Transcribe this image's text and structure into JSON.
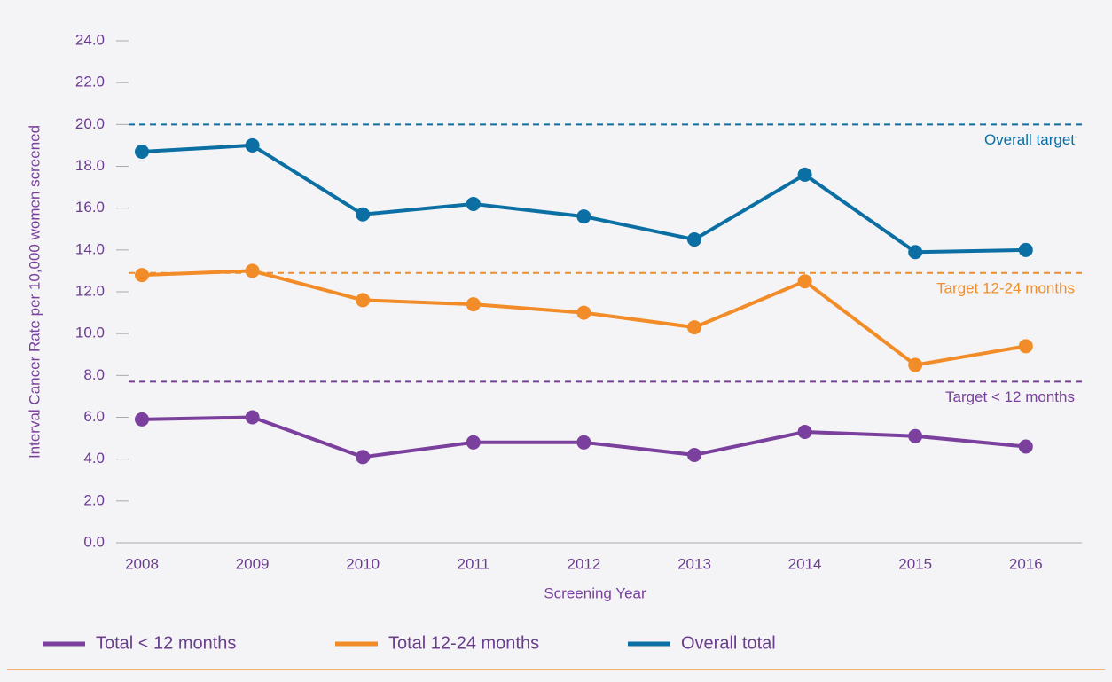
{
  "chart_data": {
    "type": "line",
    "x_label": "Screening Year",
    "y_label": "Interval Cancer Rate per 10,000 women screened",
    "categories": [
      "2008",
      "2009",
      "2010",
      "2011",
      "2012",
      "2013",
      "2014",
      "2015",
      "2016"
    ],
    "series": [
      {
        "name": "Total < 12 months",
        "color": "#7b3f9e",
        "values": [
          5.9,
          6.0,
          4.1,
          4.8,
          4.8,
          4.2,
          5.3,
          5.1,
          4.6
        ]
      },
      {
        "name": "Total 12-24 months",
        "color": "#f28c28",
        "values": [
          12.8,
          13.0,
          11.6,
          11.4,
          11.0,
          10.3,
          12.5,
          8.5,
          9.4
        ]
      },
      {
        "name": "Overall total",
        "color": "#0b6fa4",
        "values": [
          18.7,
          19.0,
          15.7,
          16.2,
          15.6,
          14.5,
          17.6,
          13.9,
          14.0
        ]
      }
    ],
    "reference_lines": [
      {
        "name": "Overall target",
        "value": 20.0,
        "color": "#0b6fa4"
      },
      {
        "name": "Target 12-24 months",
        "value": 12.9,
        "color": "#f28c28"
      },
      {
        "name": "Target < 12 months",
        "value": 7.7,
        "color": "#7b3f9e"
      }
    ],
    "ylim": [
      0,
      24
    ],
    "yticks": [
      {
        "value": 0,
        "label": "0.0"
      },
      {
        "value": 2,
        "label": "2.0"
      },
      {
        "value": 4,
        "label": "4.0"
      },
      {
        "value": 6,
        "label": "6.0"
      },
      {
        "value": 8,
        "label": "8.0"
      },
      {
        "value": 10,
        "label": "10.0"
      },
      {
        "value": 12,
        "label": "12.0"
      },
      {
        "value": 14,
        "label": "14.0"
      },
      {
        "value": 16,
        "label": "16.0"
      },
      {
        "value": 18,
        "label": "18.0"
      },
      {
        "value": 20,
        "label": "20.0"
      },
      {
        "value": 22,
        "label": "22.0"
      },
      {
        "value": 24,
        "label": "24.0"
      }
    ],
    "legend": "bottom"
  }
}
